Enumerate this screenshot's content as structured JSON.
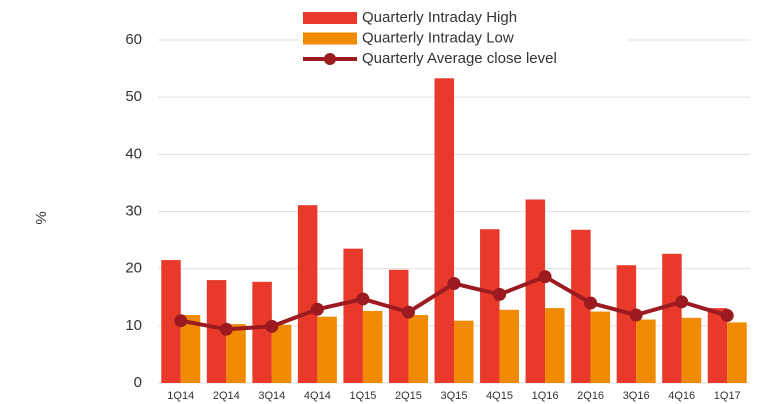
{
  "chart_data": {
    "type": "bar_line",
    "categories": [
      "1Q14",
      "2Q14",
      "3Q14",
      "4Q14",
      "1Q15",
      "2Q15",
      "3Q15",
      "4Q15",
      "1Q16",
      "2Q16",
      "3Q16",
      "4Q16",
      "1Q17"
    ],
    "series": [
      {
        "name": "Quarterly Intraday High",
        "type": "bar",
        "color": "#e8392b",
        "values": [
          21.5,
          18,
          17.7,
          31.1,
          23.5,
          19.8,
          53.3,
          26.9,
          32.1,
          26.8,
          20.6,
          22.6,
          13.1
        ]
      },
      {
        "name": "Quarterly Intraday Low",
        "type": "bar",
        "color": "#f08a00",
        "values": [
          11.9,
          10.3,
          10.2,
          11.6,
          12.6,
          11.9,
          10.9,
          12.8,
          13.1,
          12.5,
          11.1,
          11.4,
          10.6
        ]
      },
      {
        "name": "Quarterly Average close level",
        "type": "line",
        "color": "#9b1b21",
        "values": [
          10.9,
          9.4,
          9.9,
          12.9,
          14.7,
          12.4,
          17.4,
          15.5,
          18.6,
          14.0,
          11.9,
          14.2,
          11.8
        ]
      }
    ],
    "y_label": "%",
    "ylim": [
      0,
      60
    ],
    "yticks": [
      0,
      10,
      20,
      30,
      40,
      50,
      60
    ],
    "grid": true,
    "legend": "top"
  }
}
